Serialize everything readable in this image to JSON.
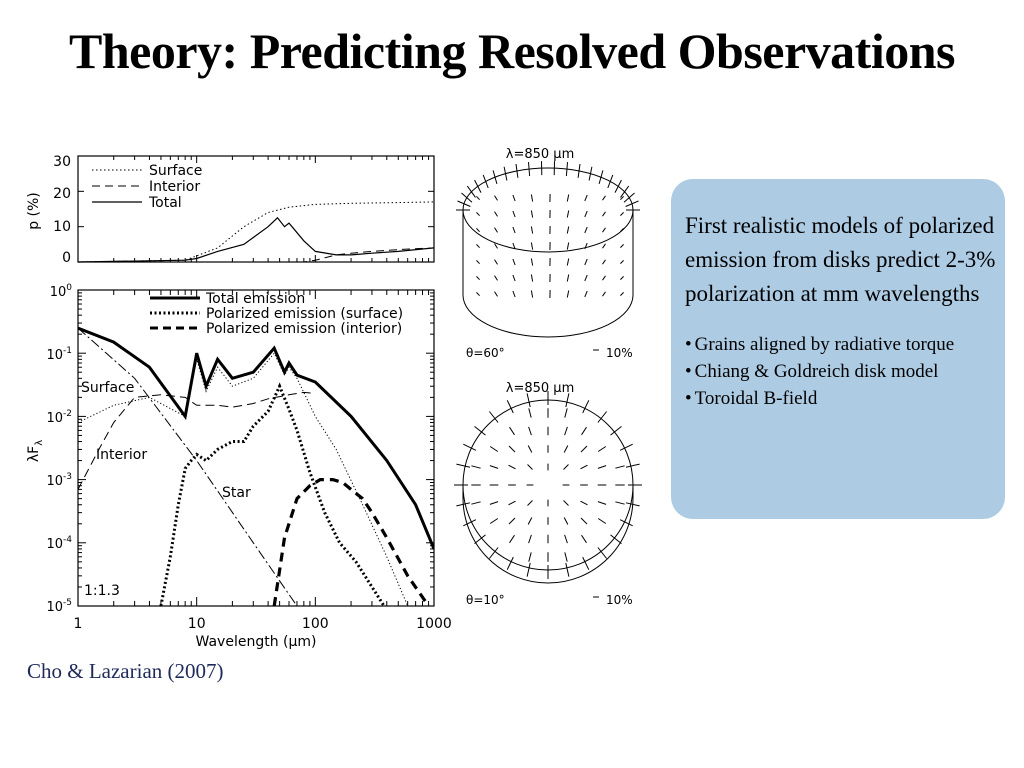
{
  "slide": {
    "title": "Theory: Predicting Resolved Observations",
    "citation": "Cho & Lazarian (2007)"
  },
  "callout": {
    "heading": "First realistic models of polarized emission from disks predict 2-3% polarization at mm wavelengths",
    "bullets": [
      "Grains aligned by radiative torque",
      "Chiang & Goldreich disk model",
      "Toroidal B-field"
    ],
    "background_color": "#adcbe3"
  },
  "chart_data": [
    {
      "type": "line",
      "ylabel": "p (%)",
      "x_scale": "log",
      "xlim": [
        1,
        1000
      ],
      "ylim": [
        0,
        30
      ],
      "y_ticks": [
        "30",
        "20",
        "10",
        "0"
      ],
      "legend": [
        "Surface",
        "Interior",
        "Total"
      ],
      "legend_position": "top-left",
      "series": [
        {
          "name": "Surface",
          "x": [
            1,
            8,
            15,
            25,
            40,
            60,
            100,
            200,
            500,
            1000
          ],
          "y": [
            0,
            0.5,
            4,
            10,
            14,
            15.5,
            16.3,
            16.6,
            16.8,
            17
          ]
        },
        {
          "name": "Interior",
          "x": [
            1,
            80,
            100,
            150,
            200,
            300,
            500,
            1000
          ],
          "y": [
            0,
            0,
            0.5,
            2,
            2.5,
            3,
            3.5,
            4
          ]
        },
        {
          "name": "Total",
          "x": [
            1,
            8,
            10,
            15,
            25,
            40,
            48,
            55,
            60,
            80,
            100,
            150,
            200,
            300,
            500,
            1000
          ],
          "y": [
            0,
            0.5,
            1,
            3,
            5,
            10,
            12.5,
            10,
            11,
            6,
            3,
            2,
            2,
            2.5,
            3,
            4
          ]
        }
      ]
    },
    {
      "type": "line",
      "xlabel": "Wavelength (μm)",
      "ylabel": "λF_λ",
      "x_scale": "log",
      "y_scale": "log",
      "xlim": [
        1,
        1000
      ],
      "ylim": [
        1e-05,
        1
      ],
      "x_ticks": [
        "1",
        "10",
        "100",
        "1000"
      ],
      "y_ticks": [
        "10^0",
        "10^-1",
        "10^-2",
        "10^-3",
        "10^-4",
        "10^-5"
      ],
      "legend": [
        "Total emission",
        "Polarized emission (surface)",
        "Polarized emission (interior)"
      ],
      "legend_position": "top-right",
      "annotations": [
        "Surface",
        "Interior",
        "Star",
        "1:1.3"
      ],
      "series": [
        {
          "name": "Total emission",
          "x": [
            1,
            2,
            4,
            8,
            10,
            12,
            15,
            20,
            30,
            45,
            55,
            60,
            70,
            100,
            200,
            400,
            700,
            1000
          ],
          "y": [
            0.25,
            0.15,
            0.06,
            0.01,
            0.1,
            0.03,
            0.08,
            0.04,
            0.05,
            0.12,
            0.05,
            0.07,
            0.045,
            0.035,
            0.01,
            0.002,
            0.0004,
            8e-05
          ]
        },
        {
          "name": "Polarized emission (surface)",
          "x": [
            5,
            6,
            7,
            8,
            9,
            10,
            12,
            15,
            20,
            25,
            30,
            40,
            50,
            60,
            70,
            90,
            120,
            160,
            220,
            300,
            380
          ],
          "y": [
            1e-05,
            6e-05,
            0.0004,
            0.0015,
            0.002,
            0.0025,
            0.002,
            0.003,
            0.004,
            0.004,
            0.007,
            0.012,
            0.03,
            0.013,
            0.006,
            0.0013,
            0.0003,
            0.0001,
            5e-05,
            2e-05,
            1e-05
          ]
        },
        {
          "name": "Polarized emission (interior)",
          "x": [
            45,
            55,
            70,
            90,
            110,
            140,
            170,
            200,
            250,
            300,
            400,
            600,
            900
          ],
          "y": [
            1e-05,
            0.00012,
            0.0005,
            0.0008,
            0.001,
            0.001,
            0.0009,
            0.0007,
            0.0005,
            0.0003,
            0.00012,
            3e-05,
            1e-05
          ]
        },
        {
          "name": "Surface",
          "x": [
            1,
            2,
            4,
            8,
            10,
            12,
            15,
            20,
            30,
            45,
            55,
            60,
            70,
            100,
            150,
            250,
            400,
            600
          ],
          "y": [
            0.008,
            0.015,
            0.02,
            0.01,
            0.08,
            0.025,
            0.06,
            0.03,
            0.04,
            0.1,
            0.045,
            0.06,
            0.04,
            0.01,
            0.003,
            0.0004,
            6e-05,
            1e-05
          ]
        },
        {
          "name": "Interior",
          "x": [
            1,
            1.5,
            2,
            3,
            5,
            8,
            10,
            15,
            20,
            30,
            40,
            60,
            80,
            100
          ],
          "y": [
            0.0007,
            0.003,
            0.008,
            0.02,
            0.022,
            0.02,
            0.015,
            0.015,
            0.014,
            0.016,
            0.019,
            0.022,
            0.024,
            0.023
          ]
        },
        {
          "name": "Star",
          "x": [
            1,
            3,
            10,
            30,
            70
          ],
          "y": [
            0.25,
            0.04,
            0.002,
            0.0001,
            1e-05
          ]
        }
      ]
    }
  ],
  "polarization_maps": [
    {
      "label": "λ=850 μm",
      "inclination": "θ=60°",
      "scale": "10%"
    },
    {
      "label": "λ=850 μm",
      "inclination": "θ=10°",
      "scale": "10%"
    }
  ]
}
